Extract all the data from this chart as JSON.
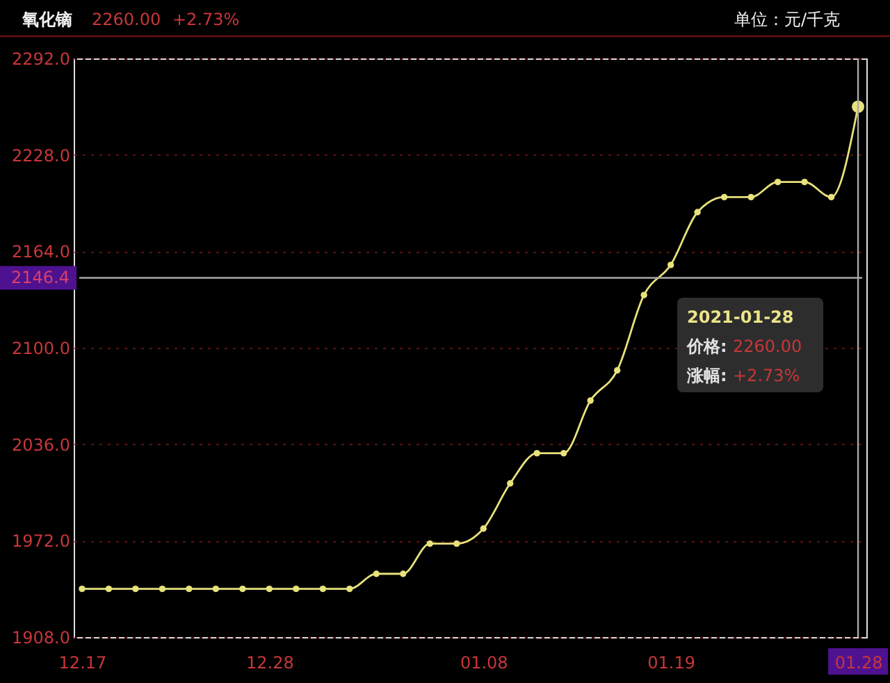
{
  "chart_data": {
    "type": "line",
    "title": "氧化镝",
    "ylabel": "单位：元/千克",
    "categories": [
      "12.17",
      null,
      null,
      null,
      null,
      null,
      null,
      "12.28",
      null,
      null,
      null,
      null,
      null,
      null,
      null,
      "01.08",
      null,
      null,
      null,
      null,
      null,
      null,
      "01.19",
      null,
      null,
      null,
      null,
      null,
      null,
      "01.28"
    ],
    "series": [
      {
        "color": "#e8e27c",
        "values": [
          1940,
          1940,
          1940,
          1940,
          1940,
          1940,
          1940,
          1940,
          1940,
          1940,
          1940,
          1950,
          1950,
          1970,
          1970,
          1980,
          2010,
          2030,
          2030,
          2065,
          2085,
          2135,
          2155,
          2190,
          2200,
          2200,
          2210,
          2210,
          2200,
          2260
        ]
      }
    ],
    "marker": "circle",
    "ylim": [
      1908,
      2292
    ],
    "yticks": [
      {
        "value": 1908,
        "label": "1908.0"
      },
      {
        "value": 1972,
        "label": "1972.0"
      },
      {
        "value": 2036,
        "label": "2036.0"
      },
      {
        "value": 2100,
        "label": "2100.0"
      },
      {
        "value": 2164,
        "label": "2164.0"
      },
      {
        "value": 2228,
        "label": "2228.0"
      },
      {
        "value": 2292,
        "label": "2292.0"
      }
    ],
    "grid": "y",
    "ref_lines": [
      {
        "axis": "y",
        "value": 2146.4,
        "label": "2146.4",
        "color": "#a8a8a8"
      },
      {
        "axis": "x",
        "value": "01.28",
        "color": "#a8a8a8"
      }
    ],
    "annotations": [
      "2260.00",
      "+2.73%",
      "2021-01-28",
      "价格:",
      "2260.00",
      "涨幅:",
      "+2.73%"
    ]
  }
}
